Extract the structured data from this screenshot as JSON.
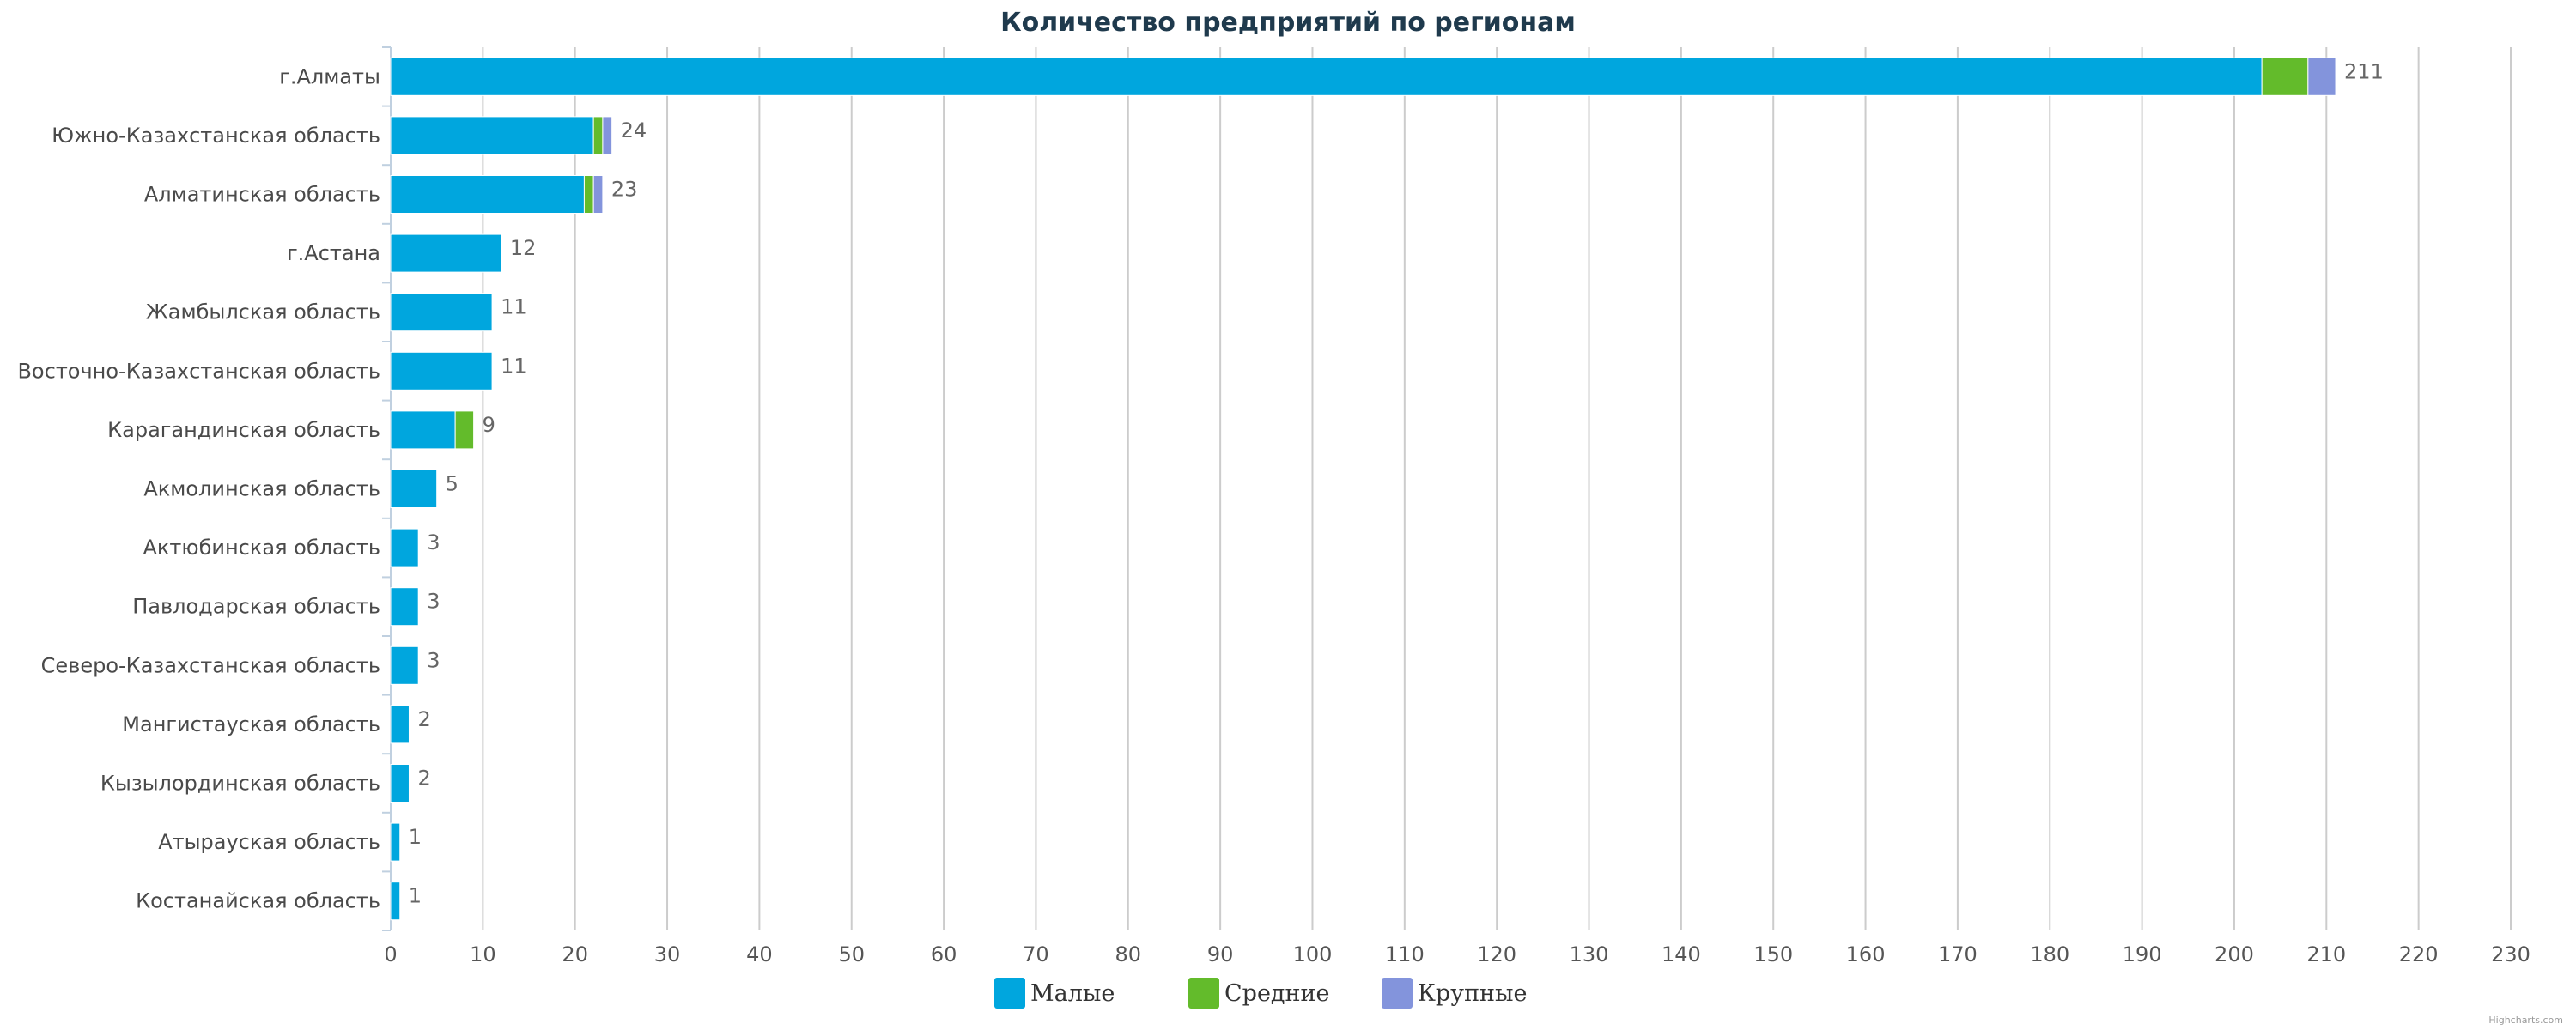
{
  "chart_data": {
    "type": "bar",
    "orientation": "horizontal",
    "stacked": true,
    "title": "Количество предприятий по регионам",
    "categories": [
      "г.Алматы",
      "Южно-Казахстанская область",
      "Алматинская область",
      "г.Астана",
      "Жамбылская область",
      "Восточно-Казахстанская область",
      "Карагандинская область",
      "Акмолинская область",
      "Актюбинская область",
      "Павлодарская область",
      "Северо-Казахстанская область",
      "Мангистауская область",
      "Кызылординская область",
      "Атырауская область",
      "Костанайская область"
    ],
    "series": [
      {
        "name": "Малые",
        "color": "#00a6de",
        "values": [
          203,
          22,
          21,
          12,
          11,
          11,
          7,
          5,
          3,
          3,
          3,
          2,
          2,
          1,
          1
        ]
      },
      {
        "name": "Средние",
        "color": "#63bb2b",
        "values": [
          5,
          1,
          1,
          0,
          0,
          0,
          2,
          0,
          0,
          0,
          0,
          0,
          0,
          0,
          0
        ]
      },
      {
        "name": "Крупные",
        "color": "#8394dc",
        "values": [
          3,
          1,
          1,
          0,
          0,
          0,
          0,
          0,
          0,
          0,
          0,
          0,
          0,
          0,
          0
        ]
      }
    ],
    "totals": [
      211,
      24,
      23,
      12,
      11,
      11,
      9,
      5,
      3,
      3,
      3,
      2,
      2,
      1,
      1
    ],
    "xlim": [
      0,
      230
    ],
    "ticks": [
      0,
      10,
      20,
      30,
      40,
      50,
      60,
      70,
      80,
      90,
      100,
      110,
      120,
      130,
      140,
      150,
      160,
      170,
      180,
      190,
      200,
      210,
      220,
      230
    ],
    "grid": true,
    "legend_position": "bottom-center"
  },
  "credits": "Highcharts.com"
}
